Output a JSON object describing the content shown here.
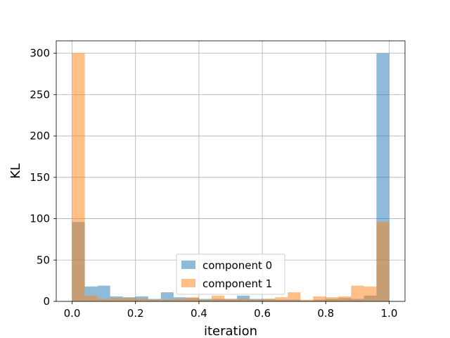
{
  "chart_data": {
    "type": "histogram",
    "title": "",
    "xlabel": "iteration",
    "ylabel": "KL",
    "xlim": [
      -0.05,
      1.05
    ],
    "ylim": [
      0,
      315
    ],
    "xticks": [
      0.0,
      0.2,
      0.4,
      0.6,
      0.8,
      1.0
    ],
    "xtick_labels": [
      "0.0",
      "0.2",
      "0.4",
      "0.6",
      "0.8",
      "1.0"
    ],
    "yticks": [
      0,
      50,
      100,
      150,
      200,
      250,
      300
    ],
    "ytick_labels": [
      "0",
      "50",
      "100",
      "150",
      "200",
      "250",
      "300"
    ],
    "grid": true,
    "legend_position": "bottom-center",
    "bin_edges": [
      0.0,
      0.04,
      0.08,
      0.12,
      0.16,
      0.2,
      0.24,
      0.28,
      0.32,
      0.36,
      0.4,
      0.44,
      0.48,
      0.52,
      0.56,
      0.6,
      0.64,
      0.68,
      0.72,
      0.76,
      0.8,
      0.84,
      0.88,
      0.92,
      0.96,
      1.0
    ],
    "series": [
      {
        "name": "component 0",
        "color": "#1f77b4",
        "alpha": 0.5,
        "values": [
          96,
          18,
          19,
          6,
          5,
          6,
          3,
          11,
          5,
          4,
          3,
          3,
          3,
          7,
          3,
          3,
          2,
          2,
          1,
          2,
          3,
          4,
          3,
          7,
          300
        ]
      },
      {
        "name": "component 1",
        "color": "#ff7f0e",
        "alpha": 0.5,
        "values": [
          300,
          7,
          3,
          4,
          4,
          3,
          2,
          2,
          3,
          5,
          2,
          7,
          3,
          3,
          2,
          3,
          5,
          11,
          2,
          6,
          5,
          6,
          19,
          18,
          96
        ]
      }
    ]
  }
}
